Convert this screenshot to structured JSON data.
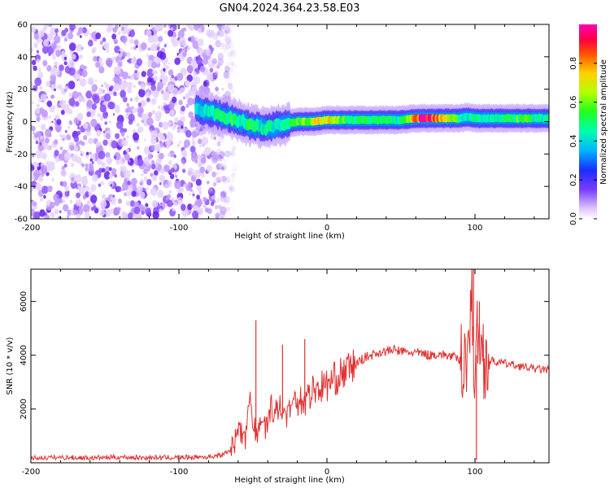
{
  "title": "GN04.2024.364.23.58.E03",
  "chart_data": [
    {
      "type": "heatmap",
      "xlabel": "Height of straight line (km)",
      "ylabel": "Frequency (Hz)",
      "xlim": [
        -200,
        150
      ],
      "ylim": [
        -60,
        60
      ],
      "x_ticks": [
        -200,
        -100,
        0,
        100
      ],
      "y_ticks": [
        -60,
        -40,
        -20,
        0,
        20,
        40,
        60
      ],
      "colorbar": {
        "label": "Normalized spectral amplitude",
        "ticks": [
          0.0,
          0.2,
          0.4,
          0.6,
          0.8
        ],
        "ticks_text": [
          "0.0",
          "0.2",
          "0.4",
          "0.6",
          "0.8"
        ],
        "range": [
          0,
          1
        ]
      },
      "noise_region": {
        "x_from": -200,
        "x_to": -70,
        "freq_min": -60,
        "freq_max": 60
      },
      "ridge": {
        "x": [
          -88,
          -80,
          -72,
          -65,
          -58,
          -52,
          -46,
          -40,
          -35,
          -30,
          -20,
          -10,
          0,
          10,
          20,
          30,
          40,
          50,
          60,
          70,
          80,
          90,
          95,
          100,
          110,
          120,
          130,
          140,
          150
        ],
        "freq": [
          8,
          6,
          4,
          2,
          0,
          -2,
          -3,
          -4,
          -3,
          -2,
          0,
          0,
          1,
          1,
          1,
          1,
          1,
          1,
          2,
          2,
          2,
          2,
          3,
          2,
          2,
          2,
          2,
          2,
          2
        ],
        "amp": [
          0.4,
          0.45,
          0.5,
          0.55,
          0.5,
          0.55,
          0.45,
          0.5,
          0.45,
          0.5,
          0.6,
          0.7,
          0.8,
          0.6,
          0.55,
          0.5,
          0.5,
          0.5,
          0.9,
          1.0,
          0.8,
          0.5,
          0.4,
          0.5,
          0.45,
          0.5,
          0.6,
          0.5,
          0.45
        ]
      }
    },
    {
      "type": "line",
      "xlabel": "Height of straight line (km)",
      "ylabel": "SNR (10 * v/v)",
      "xlim": [
        -200,
        150
      ],
      "ylim": [
        0,
        7200
      ],
      "x_ticks": [
        -200,
        -100,
        0,
        100
      ],
      "y_ticks": [
        2000,
        4000,
        6000
      ],
      "color": "#e03030",
      "series": [
        {
          "x": [
            -200,
            -180,
            -160,
            -140,
            -120,
            -100,
            -80,
            -70,
            -65,
            -60,
            -55,
            -52,
            -50,
            -48,
            -45,
            -40,
            -35,
            -30,
            -25,
            -20,
            -15,
            -10,
            -5,
            0,
            5,
            10,
            15,
            20,
            25,
            30,
            35,
            40,
            45,
            50,
            55,
            60,
            65,
            70,
            75,
            80,
            85,
            90,
            95,
            98,
            100,
            102,
            105,
            110,
            120,
            130,
            140,
            150
          ],
          "y": [
            180,
            200,
            180,
            210,
            190,
            200,
            220,
            300,
            500,
            900,
            1200,
            2500,
            1500,
            1000,
            1400,
            1700,
            2000,
            1800,
            2200,
            2400,
            2300,
            2700,
            2800,
            2900,
            3100,
            3300,
            3500,
            3700,
            3900,
            4000,
            4100,
            4150,
            4200,
            4150,
            4100,
            4100,
            4050,
            4000,
            4050,
            4000,
            3950,
            3800,
            4200,
            6000,
            3000,
            5000,
            4000,
            3800,
            3700,
            3600,
            3500,
            3450
          ]
        }
      ],
      "spikes": [
        {
          "x": -48,
          "y": 5300
        },
        {
          "x": -30,
          "y": 4400
        },
        {
          "x": -15,
          "y": 4600
        },
        {
          "x": 99,
          "y": 7200
        },
        {
          "x": 101,
          "y": 100
        },
        {
          "x": 103,
          "y": 6000
        }
      ]
    }
  ]
}
